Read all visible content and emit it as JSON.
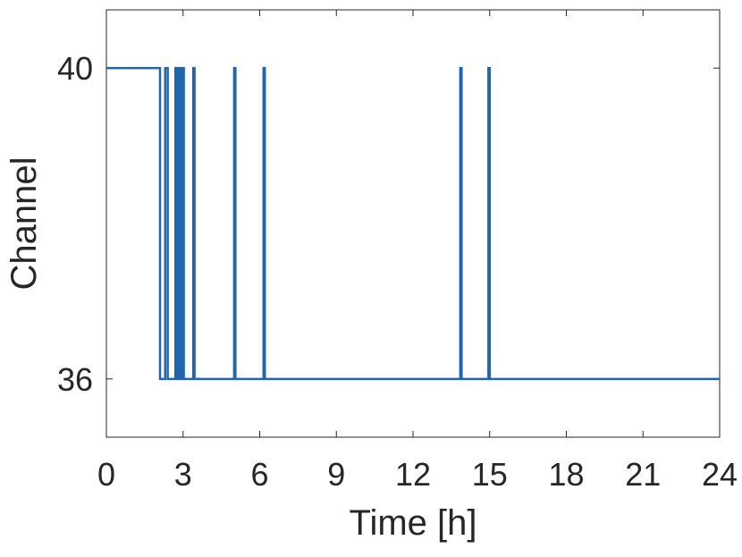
{
  "chart_data": {
    "type": "line",
    "xlabel": "Time [h]",
    "ylabel": "Channel",
    "xlim": [
      0,
      24
    ],
    "ylim": [
      35.25,
      40.75
    ],
    "xticks": [
      0,
      3,
      6,
      9,
      12,
      15,
      18,
      21,
      24
    ],
    "yticks": [
      36,
      40
    ],
    "grid": false,
    "line_color": "#2166ac",
    "series": [
      {
        "step": true,
        "points": [
          [
            0,
            40
          ],
          [
            2.1,
            40
          ],
          [
            2.1,
            36
          ],
          [
            2.3,
            36
          ],
          [
            2.3,
            40
          ],
          [
            2.4,
            40
          ],
          [
            2.4,
            36
          ],
          [
            2.7,
            36
          ],
          [
            2.7,
            40
          ],
          [
            2.78,
            40
          ],
          [
            2.78,
            36
          ],
          [
            2.85,
            36
          ],
          [
            2.85,
            40
          ],
          [
            2.9,
            40
          ],
          [
            2.9,
            36
          ],
          [
            2.98,
            36
          ],
          [
            2.98,
            40
          ],
          [
            3.03,
            40
          ],
          [
            3.03,
            36
          ],
          [
            3.4,
            36
          ],
          [
            3.4,
            40
          ],
          [
            3.45,
            40
          ],
          [
            3.45,
            36
          ],
          [
            5.0,
            36
          ],
          [
            5.0,
            40
          ],
          [
            5.05,
            40
          ],
          [
            5.05,
            36
          ],
          [
            6.15,
            36
          ],
          [
            6.15,
            40
          ],
          [
            6.2,
            40
          ],
          [
            6.2,
            36
          ],
          [
            13.85,
            36
          ],
          [
            13.85,
            40
          ],
          [
            13.9,
            40
          ],
          [
            13.9,
            36
          ],
          [
            14.95,
            36
          ],
          [
            14.95,
            40
          ],
          [
            15.0,
            40
          ],
          [
            15.0,
            36
          ],
          [
            24,
            36
          ]
        ]
      }
    ]
  }
}
